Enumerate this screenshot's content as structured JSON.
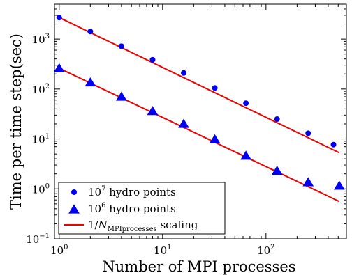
{
  "chart_data": {
    "type": "scatter",
    "title": "",
    "xlabel": "Number of MPI processes",
    "ylabel": "Time per time step(sec)",
    "xscale": "log",
    "yscale": "log",
    "xlim": [
      0.9,
      600
    ],
    "ylim": [
      0.1,
      5000
    ],
    "x_ticks": [
      {
        "value": 1,
        "base": "10",
        "exp": "0"
      },
      {
        "value": 10,
        "base": "10",
        "exp": "1"
      },
      {
        "value": 100,
        "base": "10",
        "exp": "2"
      }
    ],
    "y_ticks": [
      {
        "value": 0.1,
        "base": "10",
        "exp": "−1"
      },
      {
        "value": 1,
        "base": "10",
        "exp": "0"
      },
      {
        "value": 10,
        "base": "10",
        "exp": "1"
      },
      {
        "value": 100,
        "base": "10",
        "exp": "2"
      },
      {
        "value": 1000,
        "base": "10",
        "exp": "3"
      }
    ],
    "grid": false,
    "legend_position": "bottom-left",
    "colors": {
      "markers": "#0000ee",
      "line": "#ee0000",
      "axes": "#000000"
    },
    "series": [
      {
        "name": "10^7 hydro points",
        "legend_base": "10",
        "legend_exp": "7",
        "legend_text": " hydro points",
        "marker": "circle",
        "x": [
          1,
          2,
          4,
          8,
          16,
          32,
          64,
          128,
          256,
          450
        ],
        "y": [
          2700,
          1420,
          720,
          385,
          210,
          105,
          52,
          25,
          13,
          7.7
        ]
      },
      {
        "name": "10^6 hydro points",
        "legend_base": "10",
        "legend_exp": "6",
        "legend_text": " hydro points",
        "marker": "triangle",
        "x": [
          1,
          2,
          4,
          8,
          16,
          32,
          64,
          128,
          256,
          512
        ],
        "y": [
          260,
          135,
          70,
          36,
          20,
          9.8,
          4.6,
          2.3,
          1.35,
          1.15
        ]
      }
    ],
    "reference_lines": [
      {
        "legend_pre": "1/",
        "legend_n": "N",
        "legend_sub": "MPIprocesses",
        "legend_post": " scaling",
        "x": [
          1,
          512
        ],
        "y": [
          2700,
          5.3
        ]
      },
      {
        "x": [
          1,
          512
        ],
        "y": [
          260,
          0.56
        ]
      }
    ]
  }
}
